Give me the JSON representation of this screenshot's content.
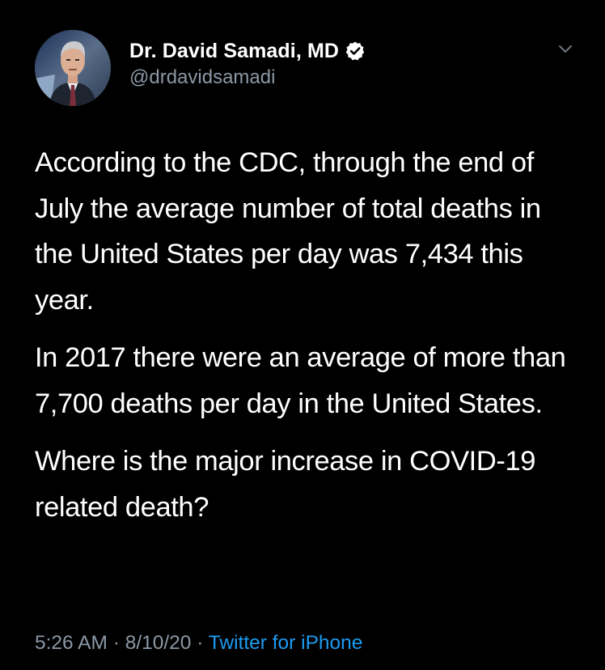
{
  "author": {
    "display_name": "Dr. David Samadi, MD",
    "handle": "@drdavidsamadi",
    "verified": true
  },
  "tweet": {
    "paragraphs": [
      "According to the CDC, through the end of July the average number of total deaths in the United States per day was 7,434 this year.",
      "In 2017 there were an average of more than 7,700 deaths per day in the United States.",
      "Where is the major increase in COVID-19 related death?"
    ]
  },
  "meta": {
    "time": "5:26 AM",
    "date": "8/10/20",
    "separator": "·",
    "source": "Twitter for iPhone"
  },
  "icons": {
    "verified": "verified-badge-icon",
    "menu": "chevron-down-icon"
  },
  "colors": {
    "background": "#000000",
    "text": "#ffffff",
    "secondary": "#8b98a5",
    "link": "#1d9bf0"
  }
}
